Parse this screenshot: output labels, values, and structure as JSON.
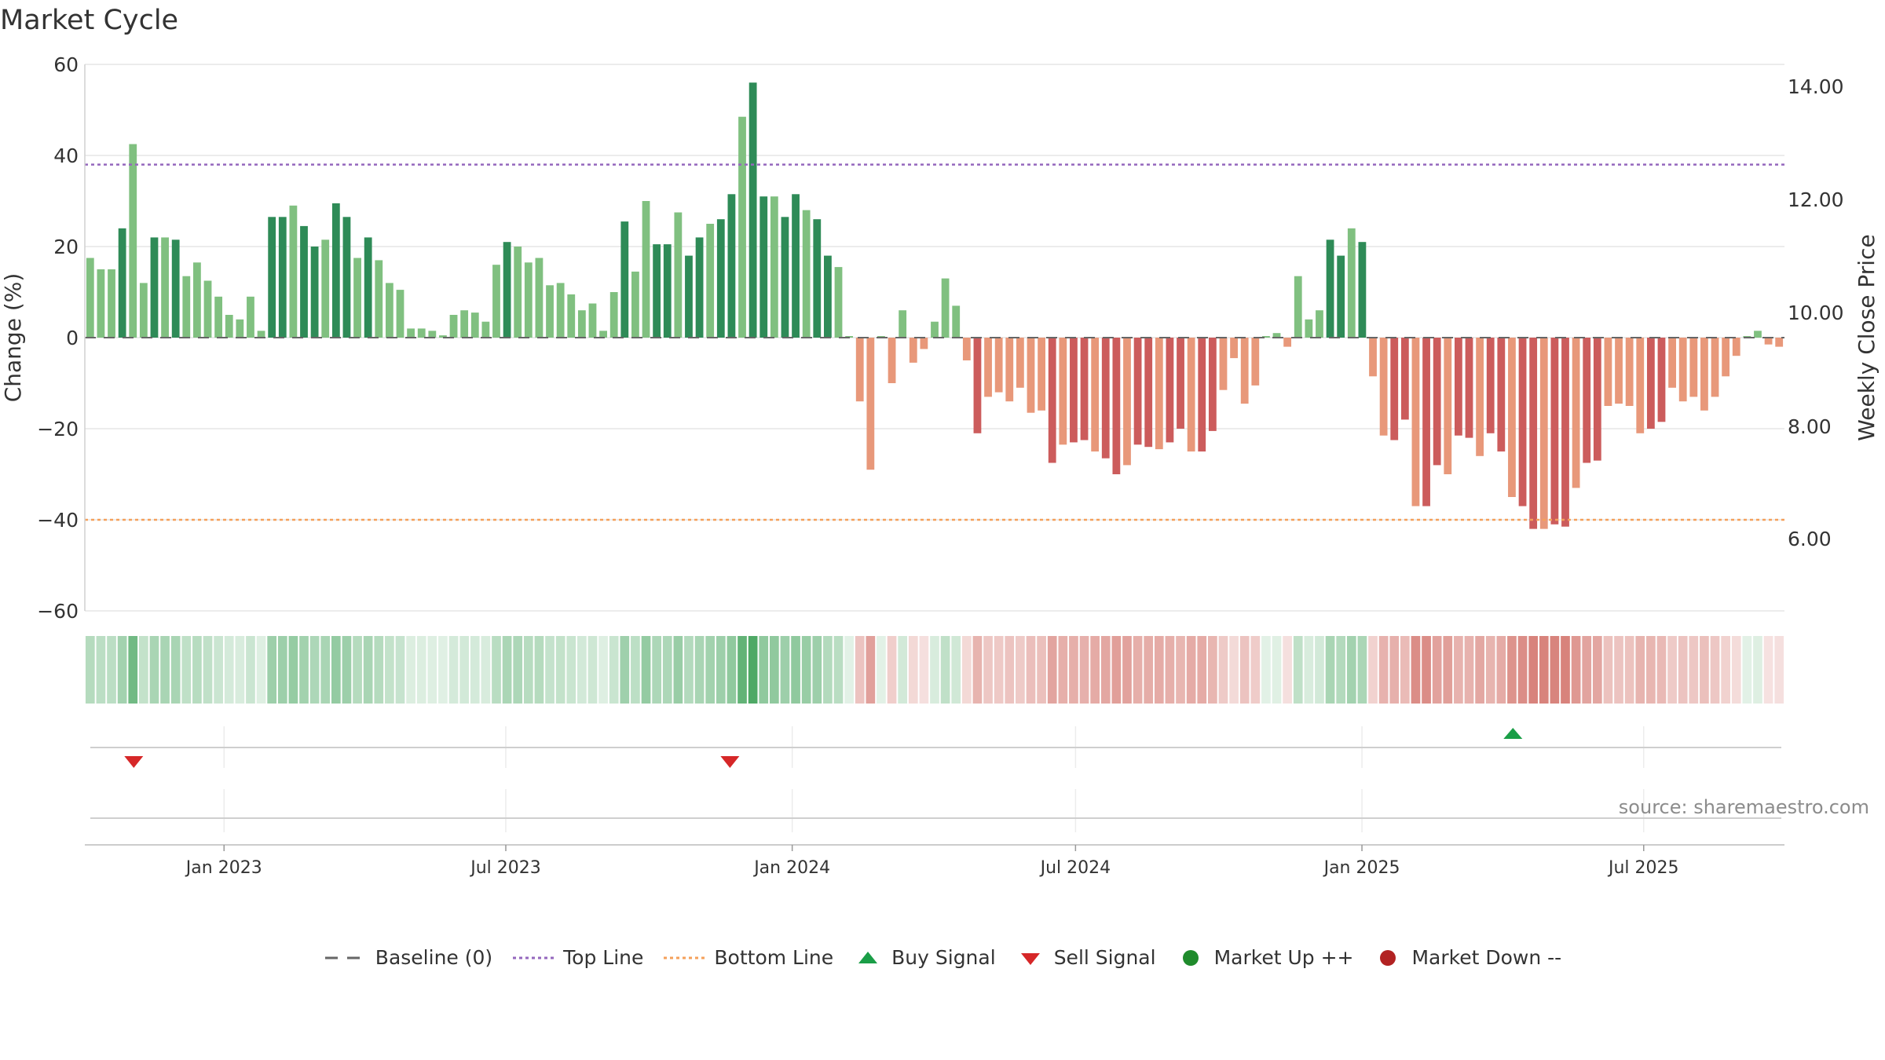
{
  "title": "Market Cycle",
  "source": "source: sharemaestro.com",
  "legend": [
    {
      "label": "Baseline (0)",
      "icon": "dashed-line-icon",
      "color": "#666666"
    },
    {
      "label": "Top Line",
      "icon": "dotted-line-icon",
      "color": "#9467bd"
    },
    {
      "label": "Bottom Line",
      "icon": "dotted-line-icon",
      "color": "#f5a05a"
    },
    {
      "label": "Buy Signal",
      "icon": "triangle-up-icon",
      "color": "#1a9e47"
    },
    {
      "label": "Sell Signal",
      "icon": "triangle-down-icon",
      "color": "#d62728"
    },
    {
      "label": "Market Up ++",
      "icon": "circle-icon",
      "color": "#1f8b2c"
    },
    {
      "label": "Market Down --",
      "icon": "circle-icon",
      "color": "#b22222"
    }
  ],
  "chart_data": {
    "type": "bar",
    "title": "Market Cycle",
    "ylabel": "Change (%)",
    "y2label": "Weekly Close Price",
    "ylim": [
      -60,
      60
    ],
    "yticks": [
      "60",
      "40",
      "20",
      "0",
      "−20",
      "−40",
      "−60"
    ],
    "y2ticks": [
      "14.00",
      "12.00",
      "10.00",
      "8.00",
      "6.00"
    ],
    "xticks": [
      "Jan 2023",
      "Jul 2023",
      "Jan 2024",
      "Jul 2024",
      "Jan 2025",
      "Jul 2025"
    ],
    "x_start": "2022-10-07",
    "x_end": "2025-09-26",
    "top_line": 38,
    "bottom_line": -40,
    "grid": true,
    "legend_position": "bottom",
    "colors": {
      "up_strong": "#2e8b57",
      "up_weak": "#80c080",
      "down_strong": "#cc5c5c",
      "down_weak": "#e8987a",
      "top_line": "#9467bd",
      "bottom_line": "#f5a05a"
    },
    "values": [
      17.5,
      15,
      15,
      24,
      42.5,
      12,
      22,
      22,
      21.5,
      13.5,
      16.5,
      12.5,
      9,
      5,
      4,
      9,
      1.5,
      26.5,
      26.5,
      29,
      24.5,
      20,
      21.5,
      29.5,
      26.5,
      17.5,
      22,
      17,
      12,
      10.5,
      2,
      2,
      1.5,
      0.5,
      5,
      6,
      5.5,
      3.5,
      16,
      21,
      20,
      16.5,
      17.5,
      11.5,
      12,
      9.5,
      6,
      7.5,
      1.5,
      10,
      25.5,
      14.5,
      30,
      20.5,
      20.5,
      27.5,
      18,
      22,
      25,
      26,
      31.5,
      48.5,
      56,
      31,
      31,
      26.5,
      31.5,
      28,
      26,
      18,
      15.5,
      0,
      -14,
      -29,
      0,
      -10,
      6,
      -5.5,
      -2.5,
      3.5,
      13,
      7,
      -5,
      -21,
      -13,
      -12,
      -14,
      -11,
      -16.5,
      -16,
      -27.5,
      -23.5,
      -23,
      -22.5,
      -25,
      -26.5,
      -30,
      -28,
      -23.5,
      -24,
      -24.5,
      -23,
      -20,
      -25,
      -25,
      -20.5,
      -11.5,
      -4.5,
      -14.5,
      -10.5,
      0,
      1,
      -2,
      13.5,
      4,
      6,
      21.5,
      18,
      24,
      21,
      -8.5,
      -21.5,
      -22.5,
      -18,
      -37,
      -37,
      -28,
      -30,
      -21.5,
      -22,
      -26,
      -21,
      -25,
      -35,
      -37,
      -42,
      -42,
      -41,
      -41.5,
      -33,
      -27.5,
      -27,
      -15,
      -14.5,
      -15,
      -21,
      -20,
      -18.5,
      -11,
      -14,
      -13,
      -16,
      -13,
      -8.5,
      -4,
      0,
      1.5,
      -1.5,
      -2
    ],
    "signals": [
      {
        "type": "sell",
        "date": "2022-11-04"
      },
      {
        "type": "sell",
        "date": "2023-11-22"
      },
      {
        "type": "buy",
        "date": "2025-04-08"
      }
    ]
  }
}
